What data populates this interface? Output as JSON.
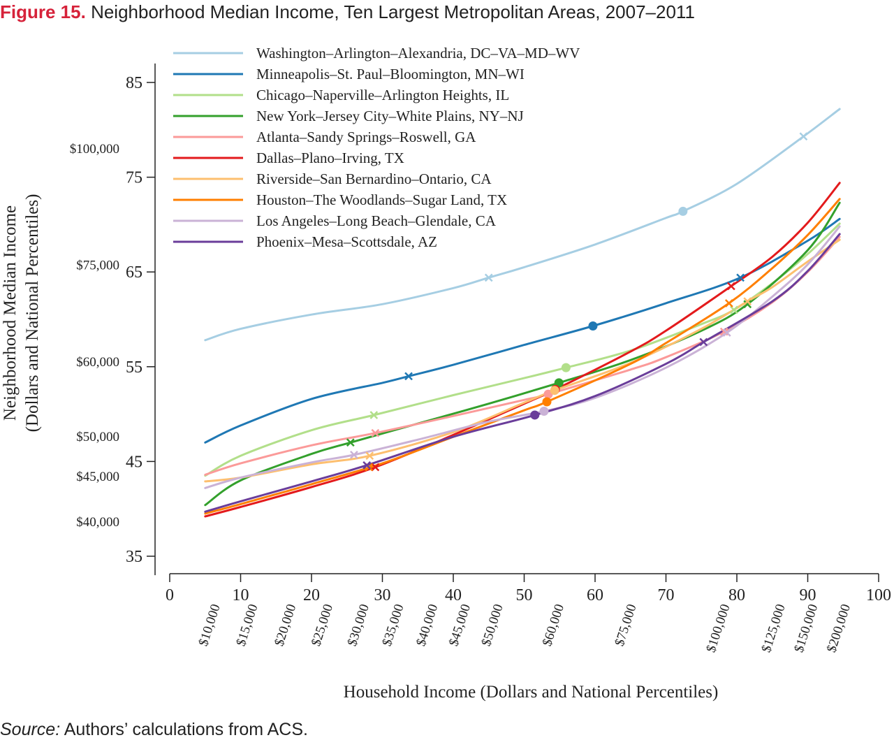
{
  "figure": {
    "number": "Figure 15.",
    "title": "Neighborhood Median Income, Ten Largest Metropolitan Areas, 2007–2011"
  },
  "source": {
    "label": "Source:",
    "text": "Authors’ calculations from ACS."
  },
  "chart_data": {
    "type": "line",
    "xlabel": "Household Income (Dollars and National Percentiles)",
    "ylabel": "Neighborhood Median Income",
    "ylabel_line2": "(Dollars and National Percentiles)",
    "xlim": [
      0,
      100
    ],
    "ylim": [
      33,
      87
    ],
    "x_ticks": [
      0,
      10,
      20,
      30,
      40,
      50,
      60,
      70,
      80,
      90,
      100
    ],
    "y_ticks": [
      35,
      45,
      55,
      65,
      75,
      85
    ],
    "x_dollar_ticks": [
      {
        "label": "$10,000",
        "pct": 6.5
      },
      {
        "label": "$15,000",
        "pct": 11.8
      },
      {
        "label": "$20,000",
        "pct": 17.2
      },
      {
        "label": "$25,000",
        "pct": 22.4
      },
      {
        "label": "$30,000",
        "pct": 27.5
      },
      {
        "label": "$35,000",
        "pct": 32.4
      },
      {
        "label": "$40,000",
        "pct": 37.2
      },
      {
        "label": "$45,000",
        "pct": 41.8
      },
      {
        "label": "$50,000",
        "pct": 46.4
      },
      {
        "label": "$60,000",
        "pct": 55.0
      },
      {
        "label": "$75,000",
        "pct": 65.2
      },
      {
        "label": "$100,000",
        "pct": 78.4
      },
      {
        "label": "$125,000",
        "pct": 86.2
      },
      {
        "label": "$150,000",
        "pct": 90.8
      },
      {
        "label": "$200,000",
        "pct": 95.4
      }
    ],
    "y_dollar_ticks": [
      {
        "label": "$100,000",
        "pct": 78.0
      },
      {
        "label": "$75,000",
        "pct": 65.7
      },
      {
        "label": "$60,000",
        "pct": 55.5
      },
      {
        "label": "$50,000",
        "pct": 47.6
      },
      {
        "label": "$45,000",
        "pct": 43.4
      },
      {
        "label": "$40,000",
        "pct": 38.6
      }
    ],
    "legend_placement": "top-left",
    "series": [
      {
        "name": "Washington–Arlington–Alexandria, DC–VA–MD–WV",
        "color": "#a6cee3",
        "x": [
          5,
          10,
          20,
          30,
          40,
          45,
          50,
          60,
          70,
          72.4,
          80,
          89.4,
          94.5
        ],
        "y": [
          57.8,
          59.0,
          60.5,
          61.6,
          63.3,
          64.4,
          65.5,
          67.9,
          70.7,
          71.4,
          74.3,
          79.3,
          82.2
        ],
        "markers": [
          {
            "x": 45.0,
            "y": 64.4,
            "m": "x"
          },
          {
            "x": 72.4,
            "y": 71.4,
            "m": "o"
          },
          {
            "x": 89.4,
            "y": 79.3,
            "m": "x"
          }
        ]
      },
      {
        "name": "Minneapolis–St. Paul–Bloomington, MN–WI",
        "color": "#1f78b4",
        "x": [
          5,
          10,
          20,
          30,
          33.7,
          40,
          50,
          59.7,
          70,
          80.5,
          90,
          94.5
        ],
        "y": [
          47.0,
          48.8,
          51.6,
          53.3,
          54.0,
          55.2,
          57.3,
          59.3,
          61.7,
          64.4,
          68.3,
          70.6
        ],
        "markers": [
          {
            "x": 33.7,
            "y": 54.0,
            "m": "x"
          },
          {
            "x": 59.7,
            "y": 59.3,
            "m": "o"
          },
          {
            "x": 80.5,
            "y": 64.4,
            "m": "x"
          }
        ]
      },
      {
        "name": "Chicago–Naperville–Arlington Heights, IL",
        "color": "#b2df8a",
        "x": [
          5,
          10,
          20,
          28.8,
          40,
          50,
          55.9,
          65,
          75,
          79.6,
          85,
          90,
          94.5
        ],
        "y": [
          43.5,
          45.6,
          48.3,
          49.9,
          52.0,
          53.8,
          54.9,
          56.7,
          59.5,
          61.0,
          63.8,
          66.9,
          70.1
        ],
        "markers": [
          {
            "x": 28.8,
            "y": 49.9,
            "m": "x"
          },
          {
            "x": 55.9,
            "y": 54.9,
            "m": "o"
          },
          {
            "x": 79.6,
            "y": 61.0,
            "m": "x"
          }
        ]
      },
      {
        "name": "New York–Jersey City–White Plains, NY–NJ",
        "color": "#33a02c",
        "x": [
          5,
          10,
          20,
          25.5,
          35,
          45,
          54.9,
          65,
          75,
          81.5,
          90,
          94.5
        ],
        "y": [
          40.4,
          43.0,
          45.8,
          47.0,
          49.0,
          51.1,
          53.3,
          55.7,
          58.8,
          61.6,
          67.3,
          72.3
        ],
        "markers": [
          {
            "x": 25.5,
            "y": 47.0,
            "m": "x"
          },
          {
            "x": 54.9,
            "y": 53.3,
            "m": "o"
          },
          {
            "x": 81.5,
            "y": 61.6,
            "m": "x"
          }
        ]
      },
      {
        "name": "Atlanta–Sandy Springs–Roswell, GA",
        "color": "#fb9a99",
        "x": [
          5,
          10,
          20,
          29.0,
          40,
          50,
          53.4,
          65,
          70,
          78.2,
          85,
          90,
          94.5
        ],
        "y": [
          43.6,
          44.8,
          46.7,
          48.0,
          49.8,
          51.5,
          52.1,
          54.7,
          56.0,
          58.7,
          61.8,
          65.0,
          68.7
        ],
        "markers": [
          {
            "x": 29.0,
            "y": 48.0,
            "m": "x"
          },
          {
            "x": 53.4,
            "y": 52.1,
            "m": "o"
          },
          {
            "x": 78.2,
            "y": 58.7,
            "m": "x"
          }
        ]
      },
      {
        "name": "Dallas–Plano–Irving, TX",
        "color": "#e31a1c",
        "x": [
          5,
          10,
          20,
          29.0,
          40,
          50,
          54.4,
          65,
          70,
          79.2,
          85,
          90,
          94.5
        ],
        "y": [
          39.2,
          40.2,
          42.3,
          44.4,
          47.8,
          51.1,
          52.6,
          56.6,
          58.8,
          63.5,
          66.6,
          70.2,
          74.4
        ],
        "markers": [
          {
            "x": 29.0,
            "y": 44.4,
            "m": "x"
          },
          {
            "x": 54.4,
            "y": 52.6,
            "m": "o"
          },
          {
            "x": 79.2,
            "y": 63.5,
            "m": "x"
          }
        ]
      },
      {
        "name": "Riverside–San Bernardino–Ontario, CA",
        "color": "#fdbf6f",
        "x": [
          5,
          10,
          20,
          28.2,
          40,
          50,
          54.3,
          65,
          75,
          81.5,
          85,
          90,
          94.5
        ],
        "y": [
          42.9,
          43.3,
          44.7,
          45.6,
          48.1,
          51.2,
          52.5,
          55.4,
          59.0,
          61.9,
          63.4,
          66.1,
          68.4
        ],
        "markers": [
          {
            "x": 28.2,
            "y": 45.6,
            "m": "x"
          },
          {
            "x": 54.3,
            "y": 52.5,
            "m": "o"
          },
          {
            "x": 81.5,
            "y": 61.9,
            "m": "x"
          }
        ]
      },
      {
        "name": "Houston–The Woodlands–Sugar Land, TX",
        "color": "#ff7f00",
        "x": [
          5,
          10,
          20,
          30,
          40,
          50,
          53.2,
          65,
          70,
          78.9,
          85,
          90,
          94.5
        ],
        "y": [
          39.5,
          40.5,
          42.6,
          44.8,
          47.6,
          50.4,
          51.3,
          55.3,
          57.5,
          61.7,
          65.4,
          68.9,
          72.7
        ],
        "markers": [
          {
            "x": 28.1,
            "y": 44.4,
            "m": "x"
          },
          {
            "x": 53.2,
            "y": 51.3,
            "m": "o"
          },
          {
            "x": 78.9,
            "y": 61.7,
            "m": "x"
          }
        ]
      },
      {
        "name": "Los Angeles–Long Beach–Glendale, CA",
        "color": "#cab2d6",
        "x": [
          5,
          10,
          20,
          26.0,
          35,
          45,
          52.8,
          60,
          70,
          78.6,
          85,
          90,
          94.5
        ],
        "y": [
          42.2,
          43.3,
          44.9,
          45.7,
          47.3,
          49.2,
          50.3,
          51.7,
          54.9,
          58.6,
          62.4,
          65.8,
          69.8
        ],
        "markers": [
          {
            "x": 26.0,
            "y": 45.7,
            "m": "x"
          },
          {
            "x": 52.8,
            "y": 50.3,
            "m": "o"
          },
          {
            "x": 78.6,
            "y": 58.6,
            "m": "x"
          }
        ]
      },
      {
        "name": "Phoenix–Mesa–Scottsdale, AZ",
        "color": "#6a3d9a",
        "x": [
          5,
          10,
          20,
          27.8,
          40,
          51.5,
          60,
          70,
          75.3,
          85,
          90,
          94.5
        ],
        "y": [
          39.7,
          40.8,
          42.9,
          44.6,
          47.6,
          49.9,
          51.9,
          55.3,
          57.6,
          61.9,
          65.1,
          69.0
        ],
        "markers": [
          {
            "x": 27.8,
            "y": 44.6,
            "m": "x"
          },
          {
            "x": 51.5,
            "y": 49.9,
            "m": "o"
          },
          {
            "x": 75.3,
            "y": 57.6,
            "m": "x"
          }
        ]
      }
    ]
  }
}
